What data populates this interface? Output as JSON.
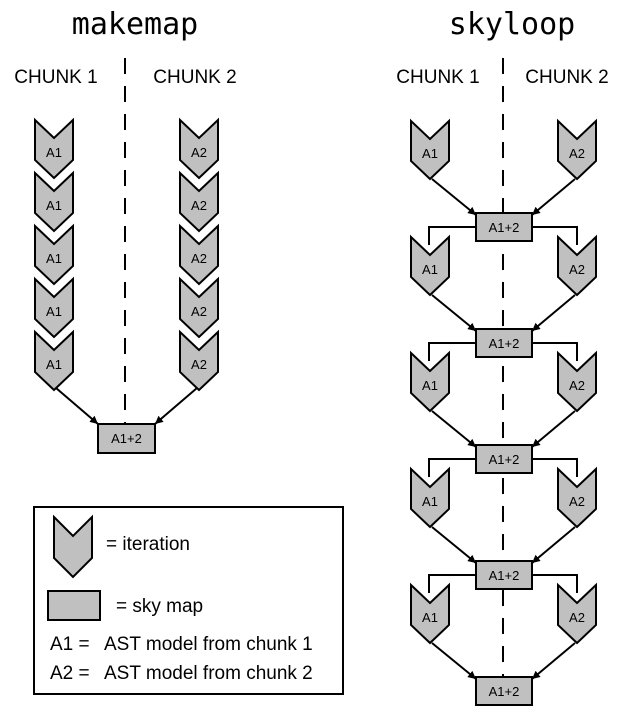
{
  "makemap": {
    "title": "makemap",
    "chunk1_label": "CHUNK 1",
    "chunk2_label": "CHUNK 2",
    "chunk1_iteration_label": "A1",
    "chunk2_iteration_label": "A2",
    "iterations_per_chunk": 5,
    "combined_label": "A1+2"
  },
  "skyloop": {
    "title": "skyloop",
    "chunk1_label": "CHUNK 1",
    "chunk2_label": "CHUNK 2",
    "chunk1_iteration_label": "A1",
    "chunk2_iteration_label": "A2",
    "iterations": 5,
    "combined_label": "A1+2"
  },
  "legend": {
    "iteration_text": "=  iteration",
    "skymap_text": "=  sky map",
    "a1_key": "A1 =",
    "a1_text": "AST model from chunk 1",
    "a2_key": "A2 =",
    "a2_text": "AST model from chunk 2"
  },
  "colors": {
    "shape_fill": "#c0c0c0",
    "stroke": "#000000"
  }
}
